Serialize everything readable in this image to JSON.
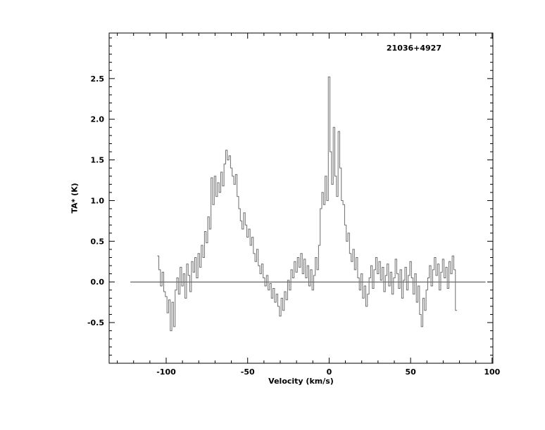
{
  "page": {
    "background": "#ffffff"
  },
  "chart_data": {
    "type": "line",
    "title": "21036+4927",
    "xlabel": "Velocity (km/s)",
    "ylabel": "TA* (K)",
    "xlim": [
      -135,
      100.5
    ],
    "ylim": [
      -1.0,
      3.06
    ],
    "x_major_ticks": [
      -100,
      -50,
      0,
      50,
      100
    ],
    "x_major_tick_labels": [
      "-100",
      "-50",
      "0",
      "50",
      "100"
    ],
    "x_minor_step": 10,
    "y_major_ticks": [
      -0.5,
      0.0,
      0.5,
      1.0,
      1.5,
      2.0,
      2.5
    ],
    "y_major_tick_labels": [
      "-0.5",
      "0.0",
      "0.5",
      "1.0",
      "1.5",
      "2.0",
      "2.5"
    ],
    "y_minor_step": 0.1,
    "axis_color": "#000000",
    "line_color": "#6e6e6e",
    "zero_line": {
      "y": 0.0,
      "x_range": [
        -122,
        96
      ]
    },
    "draw_style": "steps",
    "series": [
      {
        "name": "spectrum",
        "x_start": -105,
        "x_step": 1,
        "y": [
          0.32,
          0.15,
          -0.05,
          0.12,
          -0.12,
          -0.18,
          -0.38,
          -0.22,
          -0.6,
          -0.25,
          -0.55,
          -0.1,
          0.05,
          -0.15,
          0.18,
          -0.05,
          0.1,
          -0.2,
          0.22,
          0.08,
          -0.12,
          0.25,
          0.12,
          0.3,
          0.05,
          0.35,
          0.18,
          0.45,
          0.3,
          0.62,
          0.48,
          0.8,
          0.65,
          1.28,
          0.95,
          1.3,
          1.05,
          1.22,
          1.1,
          1.35,
          1.18,
          1.45,
          1.62,
          1.5,
          1.55,
          1.4,
          1.3,
          1.2,
          1.32,
          1.05,
          0.9,
          0.75,
          0.65,
          0.85,
          0.7,
          0.55,
          0.65,
          0.45,
          0.55,
          0.35,
          0.25,
          0.4,
          0.2,
          0.1,
          0.22,
          0.05,
          -0.05,
          0.08,
          -0.1,
          -0.02,
          -0.2,
          -0.08,
          -0.25,
          -0.15,
          -0.3,
          -0.42,
          -0.2,
          -0.35,
          -0.12,
          -0.22,
          0.02,
          -0.1,
          0.15,
          0.05,
          0.25,
          0.12,
          0.3,
          0.18,
          0.35,
          0.1,
          0.28,
          0.05,
          0.2,
          -0.05,
          0.15,
          -0.1,
          0.08,
          0.3,
          0.15,
          0.45,
          0.9,
          1.1,
          0.95,
          1.3,
          1.0,
          2.52,
          1.6,
          1.2,
          1.9,
          1.3,
          1.05,
          1.85,
          1.4,
          1.0,
          0.95,
          0.7,
          0.5,
          0.6,
          0.35,
          0.25,
          0.4,
          0.15,
          0.3,
          0.05,
          -0.1,
          0.1,
          -0.2,
          -0.05,
          -0.3,
          -0.15,
          0.05,
          0.2,
          -0.08,
          0.15,
          0.3,
          0.1,
          0.25,
          0.02,
          0.18,
          -0.12,
          0.08,
          0.22,
          -0.05,
          0.12,
          -0.15,
          0.05,
          0.28,
          0.1,
          -0.08,
          0.15,
          -0.2,
          0.02,
          0.18,
          -0.1,
          0.08,
          0.25,
          0.05,
          -0.15,
          0.1,
          -0.25,
          -0.05,
          -0.4,
          -0.55,
          -0.2,
          -0.35,
          -0.1,
          0.05,
          0.2,
          -0.05,
          0.15,
          0.3,
          0.08,
          0.22,
          -0.1,
          0.12,
          0.28,
          0.05,
          0.18,
          -0.08,
          0.25,
          0.1,
          0.32,
          0.15,
          -0.35
        ]
      }
    ]
  }
}
